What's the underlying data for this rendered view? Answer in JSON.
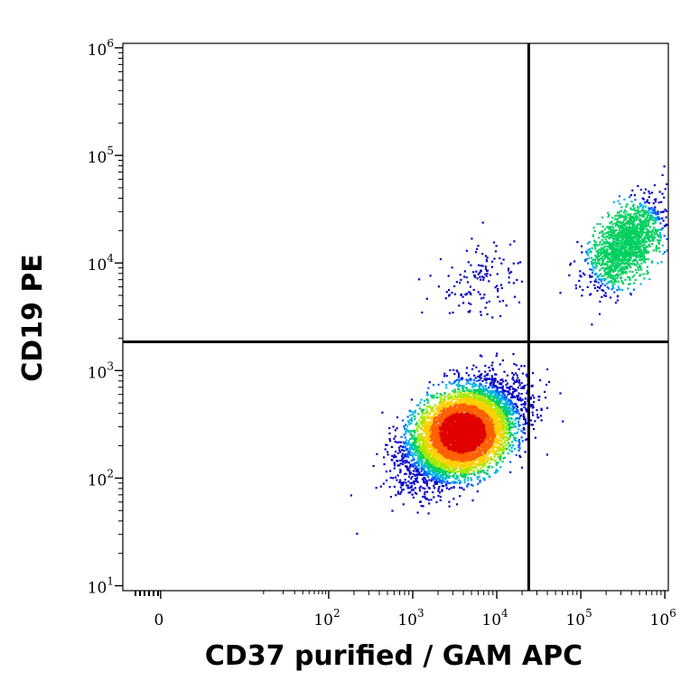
{
  "chart_data": {
    "type": "scatter",
    "subtype": "flow-cytometry-density-plot",
    "xlabel": "CD37 purified / GAM APC",
    "ylabel": "CD19 PE",
    "x_scale": "biexponential",
    "y_scale": "log",
    "xlim": [
      -50,
      1100000
    ],
    "ylim": [
      9,
      1100000
    ],
    "x_ticks": [
      {
        "value": 0,
        "base": "0",
        "exp": ""
      },
      {
        "value": 100,
        "base": "10",
        "exp": "2"
      },
      {
        "value": 1000,
        "base": "10",
        "exp": "3"
      },
      {
        "value": 10000,
        "base": "10",
        "exp": "4"
      },
      {
        "value": 100000,
        "base": "10",
        "exp": "5"
      },
      {
        "value": 1000000,
        "base": "10",
        "exp": "6"
      }
    ],
    "y_ticks": [
      {
        "value": 10,
        "base": "10",
        "exp": "1"
      },
      {
        "value": 100,
        "base": "10",
        "exp": "2"
      },
      {
        "value": 1000,
        "base": "10",
        "exp": "3"
      },
      {
        "value": 10000,
        "base": "10",
        "exp": "4"
      },
      {
        "value": 100000,
        "base": "10",
        "exp": "5"
      },
      {
        "value": 1000000,
        "base": "10",
        "exp": "6"
      }
    ],
    "quadrant_gates": {
      "x": 24000,
      "y": 1850
    },
    "populations": [
      {
        "name_hidden": "",
        "center": {
          "x": 3800,
          "y": 270
        },
        "spread_log10": {
          "x": 0.32,
          "y": 0.22
        },
        "correlation": 0.45,
        "relative_count": 0.78
      },
      {
        "name_hidden": "",
        "center": {
          "x": 330000,
          "y": 15000
        },
        "spread_log10": {
          "x": 0.22,
          "y": 0.2
        },
        "correlation": 0.55,
        "relative_count": 0.18
      },
      {
        "name_hidden": "",
        "center": {
          "x": 6000,
          "y": 7000
        },
        "spread_log10": {
          "x": 0.25,
          "y": 0.18
        },
        "correlation": 0.2,
        "relative_count": 0.015
      }
    ],
    "density_colors": [
      "#0000c8",
      "#0060ff",
      "#00b8e0",
      "#00d060",
      "#a8e800",
      "#ffd000",
      "#ff6000",
      "#e00000"
    ],
    "grid": false,
    "legend": "none"
  }
}
